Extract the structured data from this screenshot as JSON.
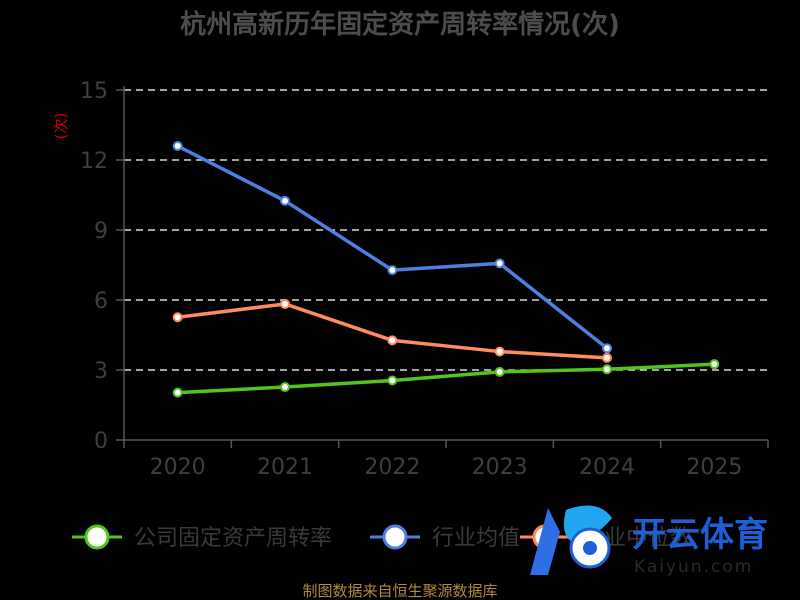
{
  "chart_data": {
    "type": "line",
    "title": "杭州高新历年固定资产周转率情况(次)",
    "unit_label": "(次)",
    "categories": [
      "2020",
      "2021",
      "2022",
      "2023",
      "2024",
      "2025"
    ],
    "ylim": [
      0,
      15
    ],
    "yticks": [
      "0",
      "3",
      "6",
      "9",
      "12",
      "15"
    ],
    "grid": true,
    "legend_position": "bottom",
    "series": [
      {
        "name": "公司固定资产周转率",
        "color": "#52c41a",
        "values": [
          2.03,
          2.27,
          2.55,
          2.92,
          3.03,
          3.25
        ]
      },
      {
        "name": "行业均值",
        "color": "#4f7fe0",
        "values": [
          12.6,
          10.25,
          7.28,
          7.57,
          3.93,
          null
        ]
      },
      {
        "name": "行业中位数",
        "color": "#ff8c5a",
        "values": [
          5.26,
          5.83,
          4.27,
          3.79,
          3.52,
          null
        ]
      }
    ]
  },
  "source_text": "制图数据来自恒生聚源数据库",
  "watermark": {
    "text_cn": "开云体育",
    "text_en": "Kaiyun.com",
    "logo": "k-soccer-ball-logo"
  }
}
